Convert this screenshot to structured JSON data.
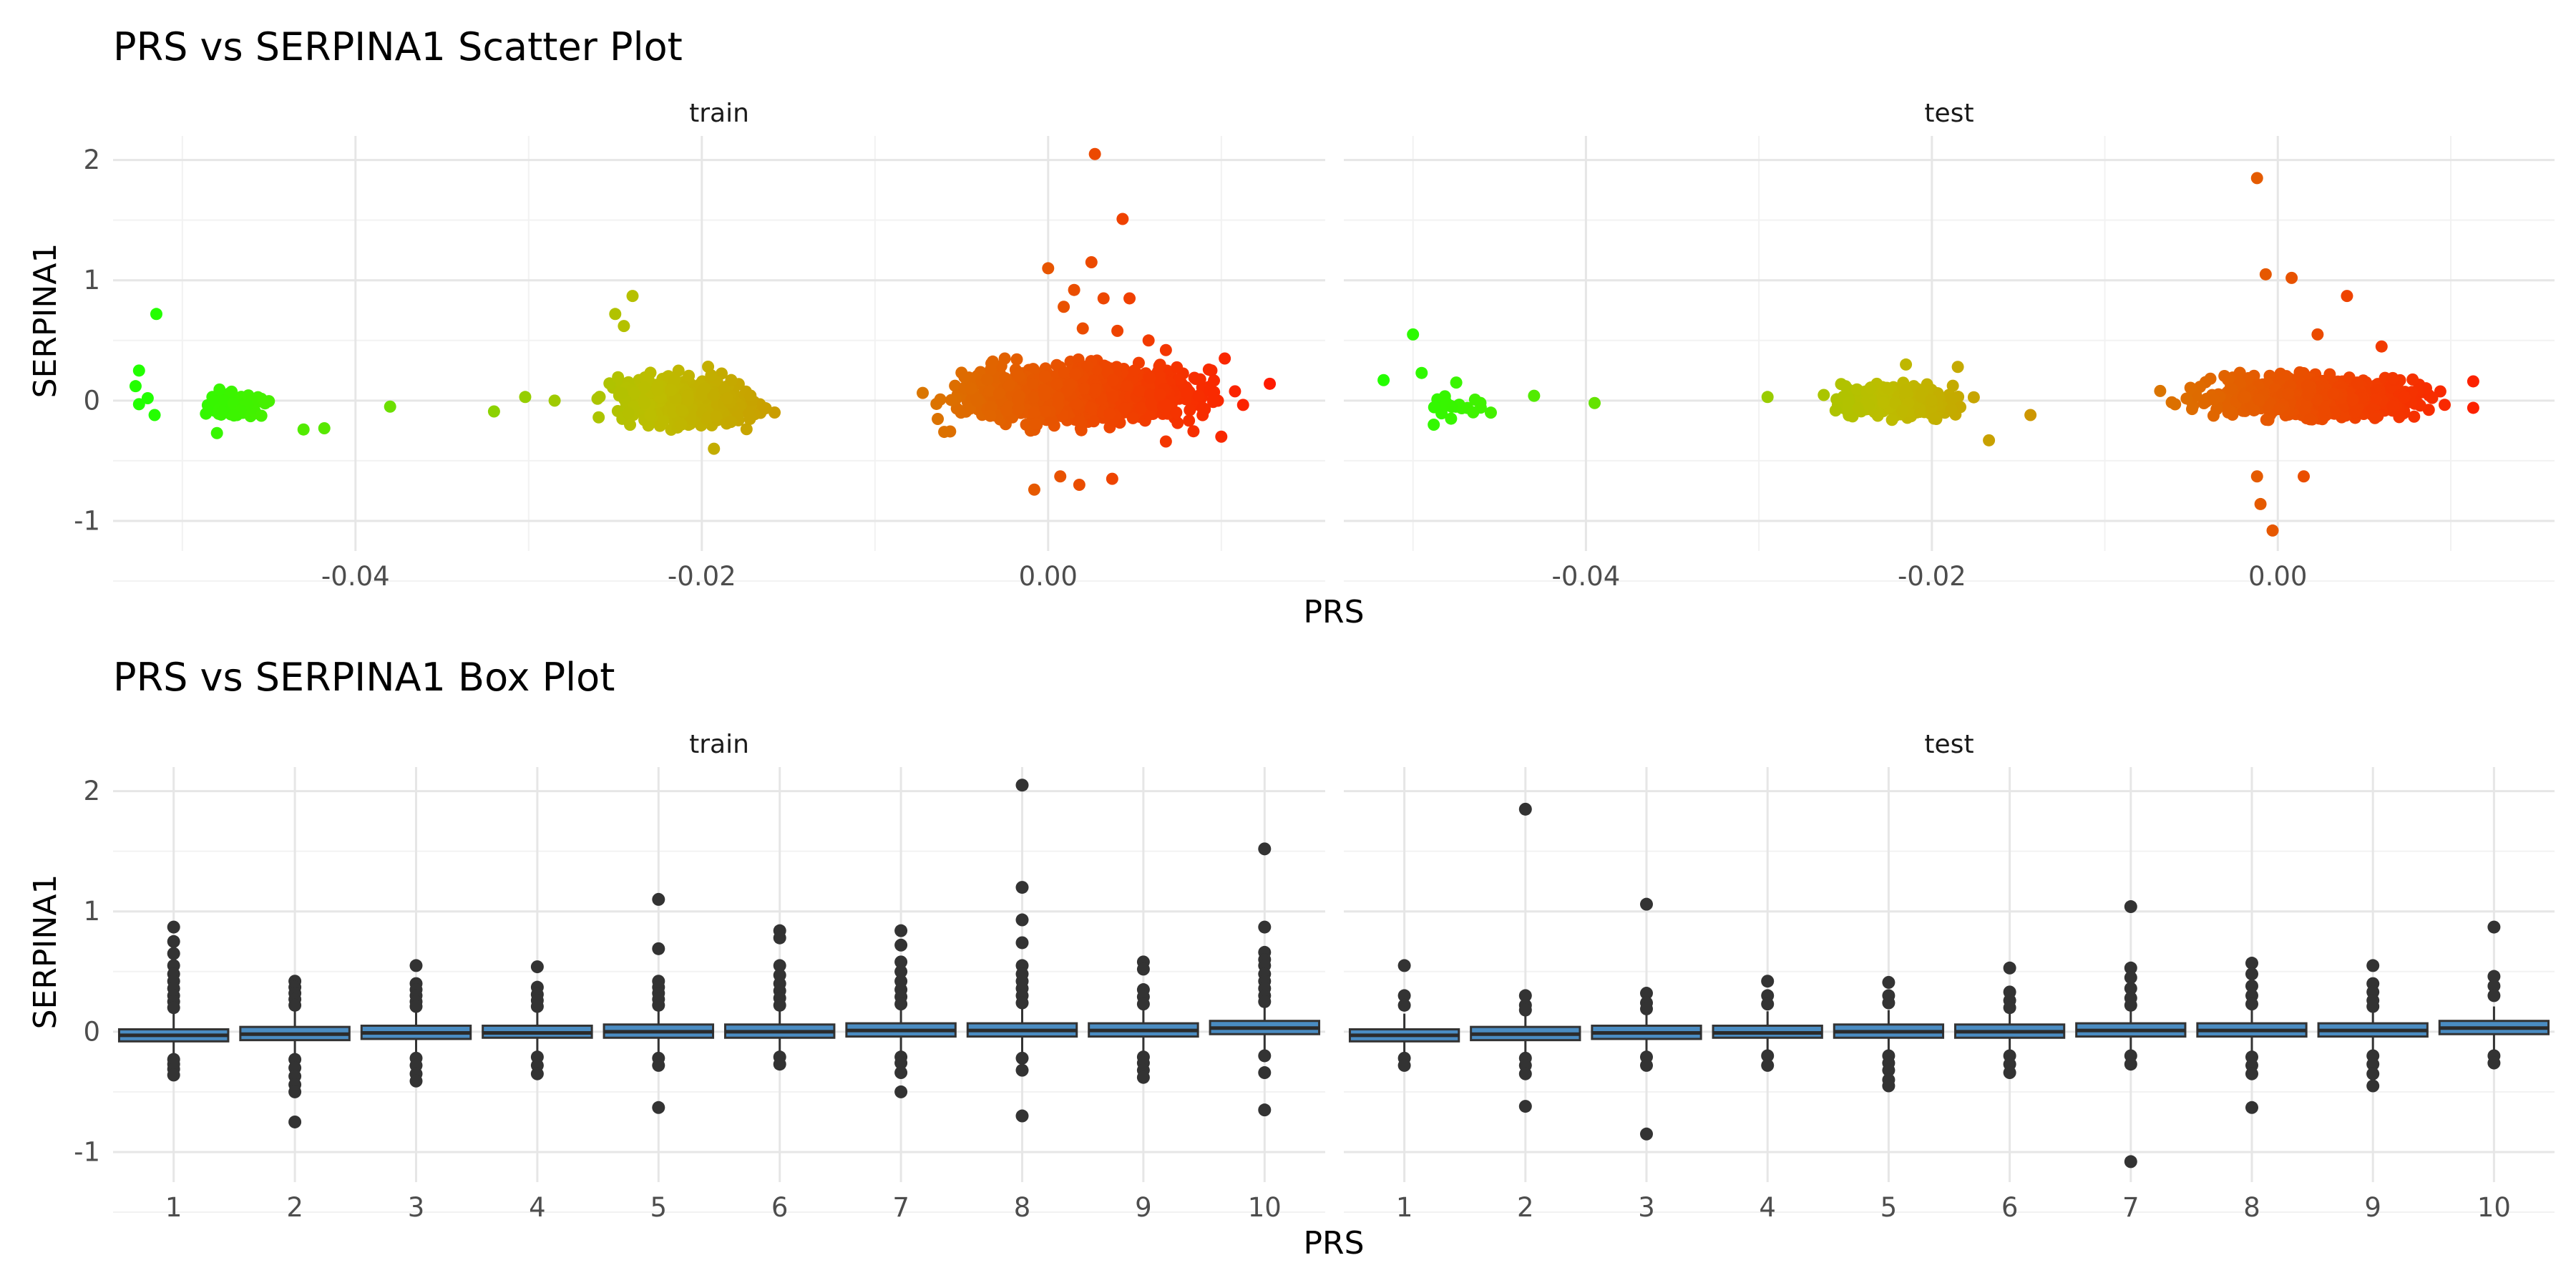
{
  "chart_data": [
    {
      "type": "scatter",
      "title": "PRS vs SERPINA1 Scatter Plot",
      "xlabel": "PRS",
      "ylabel": "SERPINA1",
      "xlim": [
        -0.054,
        0.016
      ],
      "ylim": [
        -1.25,
        2.2
      ],
      "x_ticks": [
        "-0.04",
        "-0.02",
        "0.00"
      ],
      "y_ticks": [
        "-1",
        "0",
        "1",
        "2"
      ],
      "grid": true,
      "color_scale": {
        "low": "#22ff00",
        "mid": "#bdbd00",
        "high": "#ff1a00",
        "note": "color mapped to PRS"
      },
      "panels": [
        {
          "name": "train",
          "clusters": [
            {
              "x_range": [
                -0.05,
                -0.044
              ],
              "y_range": [
                -0.25,
                0.15
              ],
              "count": 90
            },
            {
              "x_range": [
                -0.027,
                -0.015
              ],
              "y_range": [
                -0.35,
                0.35
              ],
              "count": 550
            },
            {
              "x_range": [
                -0.008,
                0.012
              ],
              "y_range": [
                -0.35,
                0.45
              ],
              "count": 1200
            }
          ],
          "outliers": [
            {
              "x": -0.0515,
              "y": 0.72
            },
            {
              "x": -0.0525,
              "y": 0.25
            },
            {
              "x": -0.0527,
              "y": 0.12
            },
            {
              "x": -0.0525,
              "y": -0.03
            },
            {
              "x": -0.0516,
              "y": -0.12
            },
            {
              "x": -0.052,
              "y": 0.02
            },
            {
              "x": -0.048,
              "y": -0.27
            },
            {
              "x": -0.043,
              "y": -0.24
            },
            {
              "x": -0.0418,
              "y": -0.23
            },
            {
              "x": -0.038,
              "y": -0.05
            },
            {
              "x": -0.032,
              "y": -0.09
            },
            {
              "x": -0.0302,
              "y": 0.03
            },
            {
              "x": -0.0285,
              "y": 0.0
            },
            {
              "x": -0.025,
              "y": 0.72
            },
            {
              "x": -0.024,
              "y": 0.87
            },
            {
              "x": -0.0245,
              "y": 0.62
            },
            {
              "x": -0.0193,
              "y": -0.4
            },
            {
              "x": -0.006,
              "y": -0.26
            },
            {
              "x": -0.0008,
              "y": -0.74
            },
            {
              "x": 0.0,
              "y": 1.1
            },
            {
              "x": 0.0007,
              "y": -0.63
            },
            {
              "x": 0.0015,
              "y": 0.92
            },
            {
              "x": 0.0018,
              "y": -0.7
            },
            {
              "x": 0.0027,
              "y": 2.05
            },
            {
              "x": 0.0025,
              "y": 1.15
            },
            {
              "x": 0.0032,
              "y": 0.85
            },
            {
              "x": 0.0037,
              "y": -0.65
            },
            {
              "x": 0.0043,
              "y": 1.51
            },
            {
              "x": 0.0047,
              "y": 0.85
            },
            {
              "x": 0.004,
              "y": 0.58
            },
            {
              "x": 0.0068,
              "y": 0.42
            },
            {
              "x": 0.0102,
              "y": 0.35
            },
            {
              "x": 0.01,
              "y": -0.3
            },
            {
              "x": 0.0128,
              "y": 0.14
            },
            {
              "x": 0.0068,
              "y": -0.34
            },
            {
              "x": 0.0009,
              "y": 0.78
            },
            {
              "x": 0.002,
              "y": 0.6
            },
            {
              "x": 0.0058,
              "y": 0.5
            }
          ]
        },
        {
          "name": "test",
          "clusters": [
            {
              "x_range": [
                -0.05,
                -0.045
              ],
              "y_range": [
                -0.18,
                0.1
              ],
              "count": 20
            },
            {
              "x_range": [
                -0.027,
                -0.017
              ],
              "y_range": [
                -0.22,
                0.22
              ],
              "count": 500
            },
            {
              "x_range": [
                -0.007,
                0.011
              ],
              "y_range": [
                -0.25,
                0.3
              ],
              "count": 900
            }
          ],
          "outliers": [
            {
              "x": -0.05,
              "y": 0.55
            },
            {
              "x": -0.0517,
              "y": 0.17
            },
            {
              "x": -0.0495,
              "y": 0.23
            },
            {
              "x": -0.0488,
              "y": -0.2
            },
            {
              "x": -0.0475,
              "y": 0.15
            },
            {
              "x": -0.0478,
              "y": -0.15
            },
            {
              "x": -0.0455,
              "y": -0.1
            },
            {
              "x": -0.043,
              "y": 0.04
            },
            {
              "x": -0.0395,
              "y": -0.02
            },
            {
              "x": -0.0295,
              "y": 0.03
            },
            {
              "x": -0.0143,
              "y": -0.12
            },
            {
              "x": -0.0167,
              "y": -0.33
            },
            {
              "x": -0.0185,
              "y": 0.28
            },
            {
              "x": -0.0215,
              "y": 0.3
            },
            {
              "x": -0.0068,
              "y": 0.08
            },
            {
              "x": -0.0012,
              "y": -0.63
            },
            {
              "x": -0.001,
              "y": -0.86
            },
            {
              "x": -0.0003,
              "y": -1.08
            },
            {
              "x": -0.0012,
              "y": 1.85
            },
            {
              "x": -0.0007,
              "y": 1.05
            },
            {
              "x": 0.0008,
              "y": 1.02
            },
            {
              "x": 0.004,
              "y": 0.87
            },
            {
              "x": 0.0015,
              "y": -0.63
            },
            {
              "x": 0.0023,
              "y": 0.55
            },
            {
              "x": 0.006,
              "y": 0.45
            },
            {
              "x": 0.0113,
              "y": 0.16
            },
            {
              "x": 0.0113,
              "y": -0.06
            }
          ]
        }
      ]
    },
    {
      "type": "box",
      "title": "PRS vs SERPINA1 Box Plot",
      "xlabel": "PRS",
      "ylabel": "SERPINA1",
      "ylim": [
        -1.25,
        2.2
      ],
      "y_ticks": [
        "-1",
        "0",
        "1",
        "2"
      ],
      "categories": [
        "1",
        "2",
        "3",
        "4",
        "5",
        "6",
        "7",
        "8",
        "9",
        "10"
      ],
      "grid": true,
      "box_color": "#4a8cc2",
      "outlier_color": "#333333",
      "panels": [
        {
          "name": "train",
          "boxes": [
            {
              "q1": -0.08,
              "median": -0.03,
              "q3": 0.02,
              "lo": -0.2,
              "hi": 0.17,
              "out": [
                0.87,
                0.75,
                0.65,
                0.55,
                0.48,
                0.42,
                0.36,
                0.3,
                0.25,
                0.2,
                -0.23,
                -0.27,
                -0.31,
                -0.36
              ]
            },
            {
              "q1": -0.07,
              "median": -0.02,
              "q3": 0.04,
              "lo": -0.21,
              "hi": 0.18,
              "out": [
                0.42,
                0.37,
                0.32,
                0.27,
                0.22,
                -0.23,
                -0.3,
                -0.37,
                -0.44,
                -0.5,
                -0.75
              ]
            },
            {
              "q1": -0.06,
              "median": -0.01,
              "q3": 0.05,
              "lo": -0.2,
              "hi": 0.19,
              "out": [
                0.55,
                0.4,
                0.35,
                0.3,
                0.25,
                0.21,
                -0.22,
                -0.28,
                -0.35,
                -0.41
              ]
            },
            {
              "q1": -0.05,
              "median": -0.01,
              "q3": 0.05,
              "lo": -0.19,
              "hi": 0.19,
              "out": [
                0.54,
                0.37,
                0.31,
                0.26,
                0.21,
                -0.21,
                -0.28,
                -0.35
              ]
            },
            {
              "q1": -0.05,
              "median": 0.0,
              "q3": 0.06,
              "lo": -0.2,
              "hi": 0.2,
              "out": [
                1.1,
                0.69,
                0.42,
                0.37,
                0.32,
                0.27,
                0.22,
                -0.22,
                -0.28,
                -0.63
              ]
            },
            {
              "q1": -0.05,
              "median": 0.0,
              "q3": 0.06,
              "lo": -0.19,
              "hi": 0.2,
              "out": [
                0.84,
                0.78,
                0.55,
                0.47,
                0.4,
                0.34,
                0.28,
                0.22,
                -0.21,
                -0.27
              ]
            },
            {
              "q1": -0.04,
              "median": 0.01,
              "q3": 0.07,
              "lo": -0.19,
              "hi": 0.21,
              "out": [
                0.84,
                0.72,
                0.58,
                0.5,
                0.42,
                0.35,
                0.29,
                0.23,
                -0.21,
                -0.26,
                -0.34,
                -0.5
              ]
            },
            {
              "q1": -0.04,
              "median": 0.01,
              "q3": 0.07,
              "lo": -0.2,
              "hi": 0.21,
              "out": [
                2.05,
                1.2,
                0.93,
                0.74,
                0.55,
                0.48,
                0.42,
                0.36,
                0.3,
                0.24,
                -0.22,
                -0.32,
                -0.7
              ]
            },
            {
              "q1": -0.04,
              "median": 0.01,
              "q3": 0.07,
              "lo": -0.19,
              "hi": 0.21,
              "out": [
                0.58,
                0.52,
                0.35,
                0.29,
                0.23,
                -0.21,
                -0.26,
                -0.32,
                -0.38
              ]
            },
            {
              "q1": -0.02,
              "median": 0.03,
              "q3": 0.09,
              "lo": -0.18,
              "hi": 0.23,
              "out": [
                1.52,
                0.87,
                0.66,
                0.6,
                0.55,
                0.48,
                0.42,
                0.36,
                0.3,
                0.25,
                -0.2,
                -0.34,
                -0.65
              ]
            }
          ]
        },
        {
          "name": "test",
          "boxes": [
            {
              "q1": -0.08,
              "median": -0.03,
              "q3": 0.02,
              "lo": -0.18,
              "hi": 0.15,
              "out": [
                0.55,
                0.3,
                0.22,
                -0.22,
                -0.28
              ]
            },
            {
              "q1": -0.07,
              "median": -0.02,
              "q3": 0.04,
              "lo": -0.19,
              "hi": 0.16,
              "out": [
                1.85,
                0.3,
                0.22,
                0.18,
                -0.22,
                -0.28,
                -0.35,
                -0.62
              ]
            },
            {
              "q1": -0.06,
              "median": -0.01,
              "q3": 0.05,
              "lo": -0.18,
              "hi": 0.17,
              "out": [
                1.06,
                0.32,
                0.24,
                0.19,
                -0.21,
                -0.28,
                -0.85
              ]
            },
            {
              "q1": -0.05,
              "median": -0.01,
              "q3": 0.05,
              "lo": -0.17,
              "hi": 0.17,
              "out": [
                0.42,
                0.3,
                0.23,
                -0.2,
                -0.28
              ]
            },
            {
              "q1": -0.05,
              "median": 0.0,
              "q3": 0.06,
              "lo": -0.18,
              "hi": 0.18,
              "out": [
                0.41,
                0.3,
                0.24,
                -0.2,
                -0.26,
                -0.32,
                -0.4,
                -0.45
              ]
            },
            {
              "q1": -0.05,
              "median": 0.0,
              "q3": 0.06,
              "lo": -0.17,
              "hi": 0.18,
              "out": [
                0.53,
                0.33,
                0.26,
                0.2,
                -0.2,
                -0.27,
                -0.34
              ]
            },
            {
              "q1": -0.04,
              "median": 0.01,
              "q3": 0.07,
              "lo": -0.17,
              "hi": 0.19,
              "out": [
                1.04,
                0.53,
                0.45,
                0.36,
                0.28,
                0.22,
                -0.2,
                -0.27,
                -1.08
              ]
            },
            {
              "q1": -0.04,
              "median": 0.01,
              "q3": 0.07,
              "lo": -0.18,
              "hi": 0.19,
              "out": [
                0.57,
                0.48,
                0.38,
                0.3,
                0.23,
                -0.21,
                -0.28,
                -0.35,
                -0.63
              ]
            },
            {
              "q1": -0.04,
              "median": 0.01,
              "q3": 0.07,
              "lo": -0.17,
              "hi": 0.19,
              "out": [
                0.55,
                0.4,
                0.33,
                0.26,
                0.21,
                -0.2,
                -0.27,
                -0.35,
                -0.45
              ]
            },
            {
              "q1": -0.02,
              "median": 0.03,
              "q3": 0.09,
              "lo": -0.16,
              "hi": 0.21,
              "out": [
                0.87,
                0.46,
                0.38,
                0.3,
                -0.2,
                -0.26
              ]
            }
          ]
        }
      ]
    }
  ]
}
